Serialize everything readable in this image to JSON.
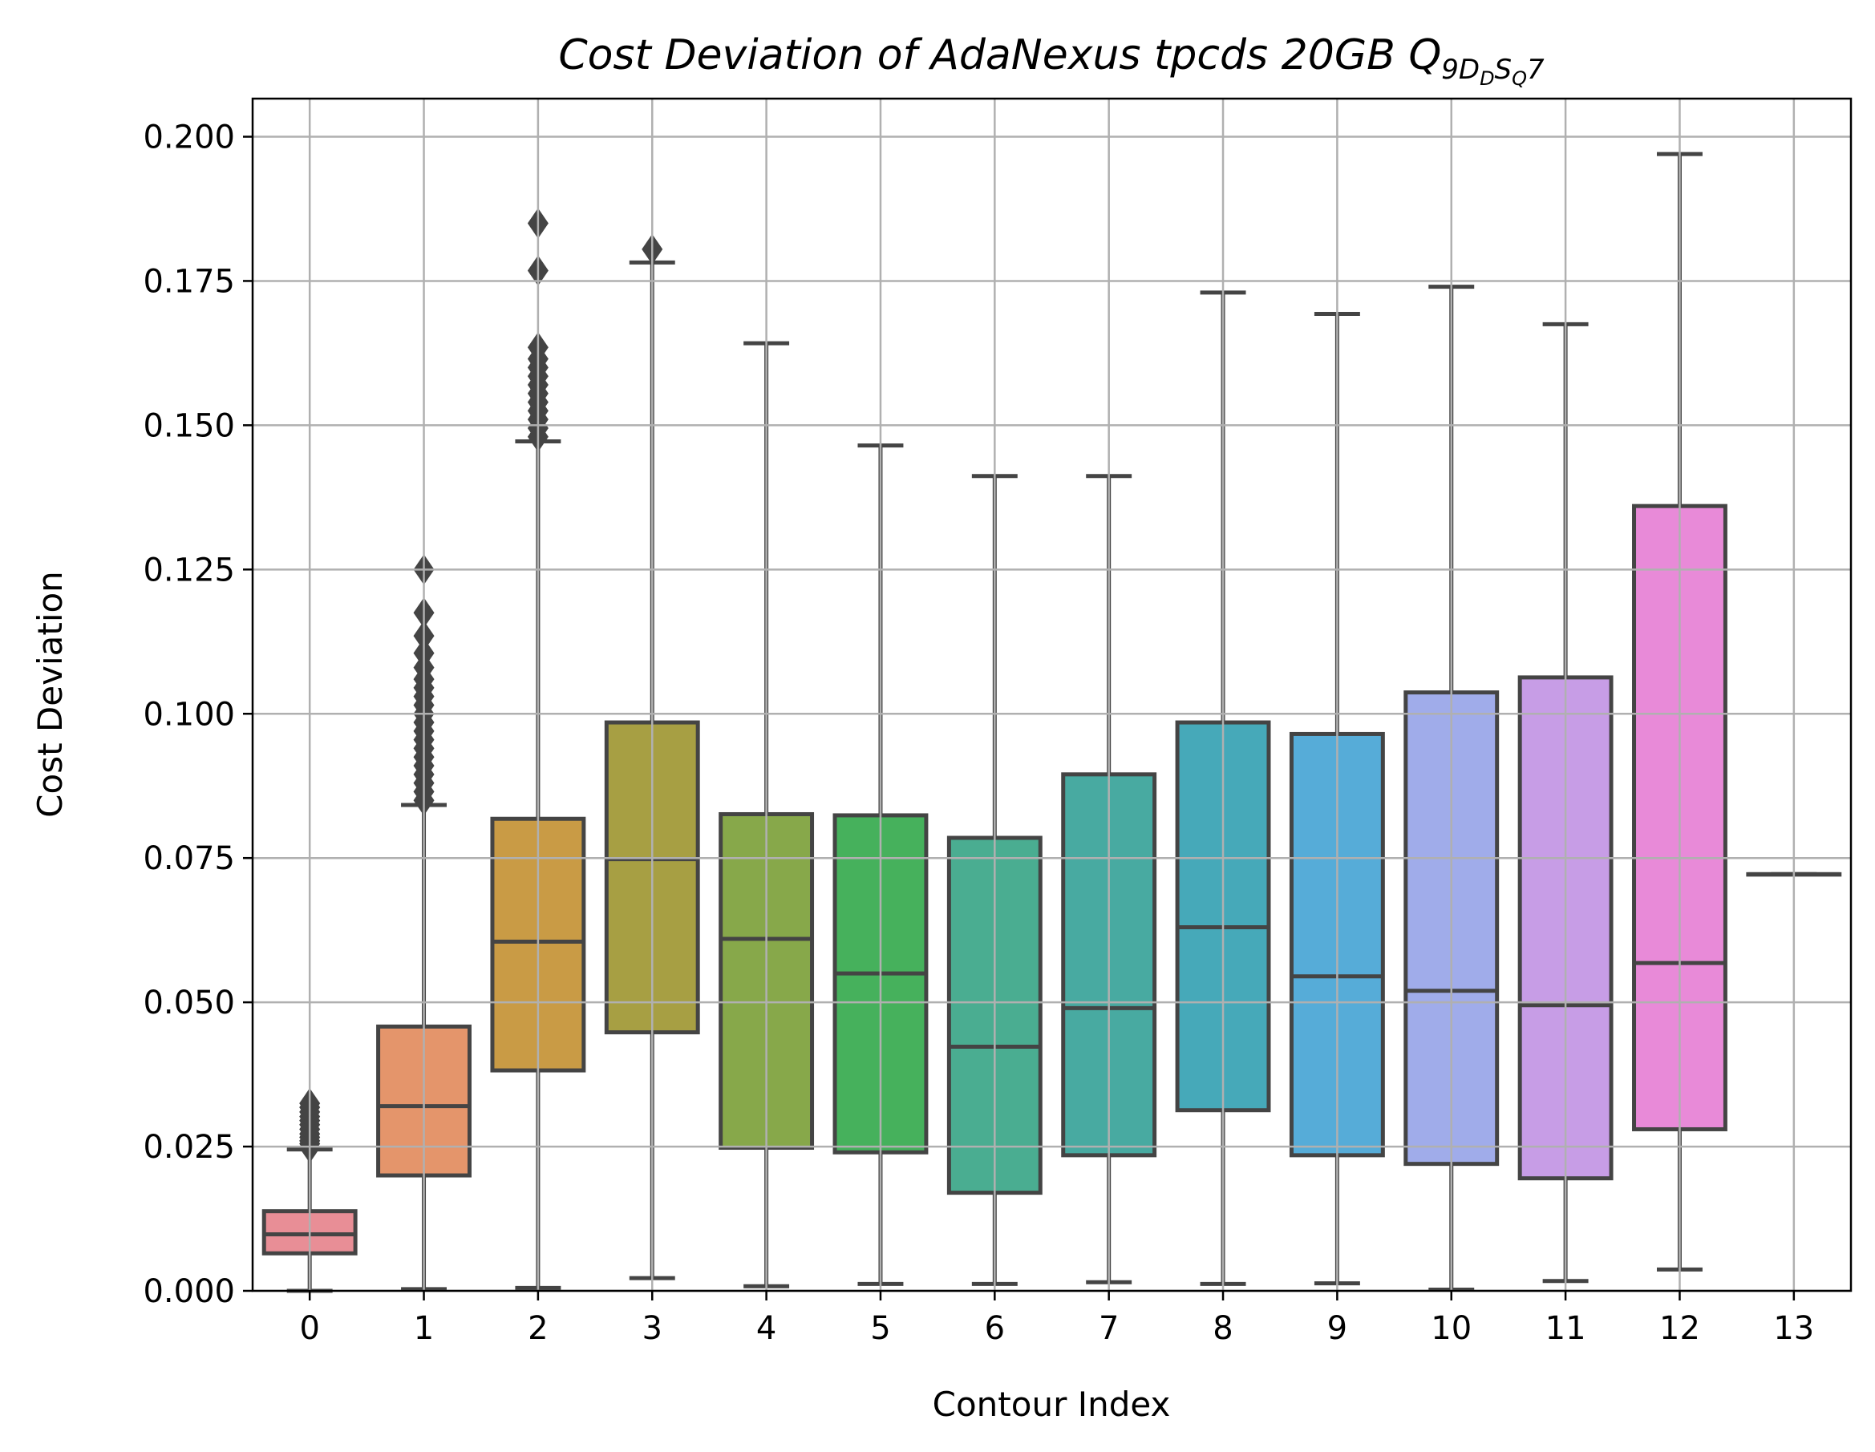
{
  "chart_data": {
    "type": "box",
    "title_parts": {
      "main": "Cost Deviation of AdaNexus tpcds  20GB  Q",
      "sub1": "9D",
      "sub2": "D",
      "sub3": "S",
      "sub4": "Q",
      "tail": "7"
    },
    "xlabel": "Contour Index",
    "ylabel": "Cost Deviation",
    "ylim": [
      0,
      0.2066
    ],
    "yticks": [
      "0.000",
      "0.025",
      "0.050",
      "0.075",
      "0.100",
      "0.125",
      "0.150",
      "0.175",
      "0.200"
    ],
    "grid": true,
    "categories": [
      "0",
      "1",
      "2",
      "3",
      "4",
      "5",
      "6",
      "7",
      "8",
      "9",
      "10",
      "11",
      "12",
      "13"
    ],
    "colors": [
      "#e88e96",
      "#e4956b",
      "#c99b45",
      "#a79f43",
      "#87a84a",
      "#46b15c",
      "#4aad91",
      "#48aaa1",
      "#46a9b9",
      "#56acd8",
      "#a0acea",
      "#c79de6",
      "#e88ad8",
      "#e88ad8"
    ],
    "boxes": [
      {
        "whisker_low": 0.0,
        "q1": 0.0065,
        "median": 0.0098,
        "q3": 0.0138,
        "whisker_high": 0.0245,
        "outliers": [
          0.0248,
          0.0255,
          0.026,
          0.0266,
          0.0272,
          0.028,
          0.0288,
          0.0295,
          0.0302,
          0.031,
          0.0318,
          0.0325
        ]
      },
      {
        "whisker_low": 0.0003,
        "q1": 0.02,
        "median": 0.032,
        "q3": 0.0458,
        "whisker_high": 0.0842,
        "outliers": [
          0.085,
          0.0865,
          0.088,
          0.0895,
          0.091,
          0.0925,
          0.094,
          0.0955,
          0.097,
          0.0985,
          0.1,
          0.1015,
          0.103,
          0.1045,
          0.106,
          0.108,
          0.1105,
          0.1135,
          0.1175,
          0.125
        ]
      },
      {
        "whisker_low": 0.0005,
        "q1": 0.0382,
        "median": 0.0605,
        "q3": 0.0818,
        "whisker_high": 0.1472,
        "outliers": [
          0.148,
          0.1495,
          0.151,
          0.1525,
          0.154,
          0.1555,
          0.157,
          0.1585,
          0.16,
          0.1615,
          0.1635,
          0.1768,
          0.185
        ]
      },
      {
        "whisker_low": 0.0022,
        "q1": 0.0448,
        "median": 0.0748,
        "q3": 0.0985,
        "whisker_high": 0.1782,
        "outliers": [
          0.1805
        ]
      },
      {
        "whisker_low": 0.0008,
        "q1": 0.0248,
        "median": 0.061,
        "q3": 0.0826,
        "whisker_high": 0.1642,
        "outliers": []
      },
      {
        "whisker_low": 0.0012,
        "q1": 0.024,
        "median": 0.055,
        "q3": 0.0824,
        "whisker_high": 0.1465,
        "outliers": []
      },
      {
        "whisker_low": 0.0012,
        "q1": 0.017,
        "median": 0.0423,
        "q3": 0.0785,
        "whisker_high": 0.1412,
        "outliers": []
      },
      {
        "whisker_low": 0.0015,
        "q1": 0.0235,
        "median": 0.049,
        "q3": 0.0895,
        "whisker_high": 0.1412,
        "outliers": []
      },
      {
        "whisker_low": 0.0012,
        "q1": 0.0313,
        "median": 0.063,
        "q3": 0.0985,
        "whisker_high": 0.173,
        "outliers": []
      },
      {
        "whisker_low": 0.0013,
        "q1": 0.0235,
        "median": 0.0545,
        "q3": 0.0965,
        "whisker_high": 0.1693,
        "outliers": []
      },
      {
        "whisker_low": 0.0002,
        "q1": 0.022,
        "median": 0.052,
        "q3": 0.1037,
        "whisker_high": 0.174,
        "outliers": []
      },
      {
        "whisker_low": 0.0017,
        "q1": 0.0195,
        "median": 0.0495,
        "q3": 0.1063,
        "whisker_high": 0.1675,
        "outliers": []
      },
      {
        "whisker_low": 0.0037,
        "q1": 0.028,
        "median": 0.0568,
        "q3": 0.136,
        "whisker_high": 0.197,
        "outliers": []
      },
      {
        "whisker_low": 0.0722,
        "q1": 0.0722,
        "median": 0.0722,
        "q3": 0.0722,
        "whisker_high": 0.0722,
        "outliers": []
      }
    ]
  }
}
